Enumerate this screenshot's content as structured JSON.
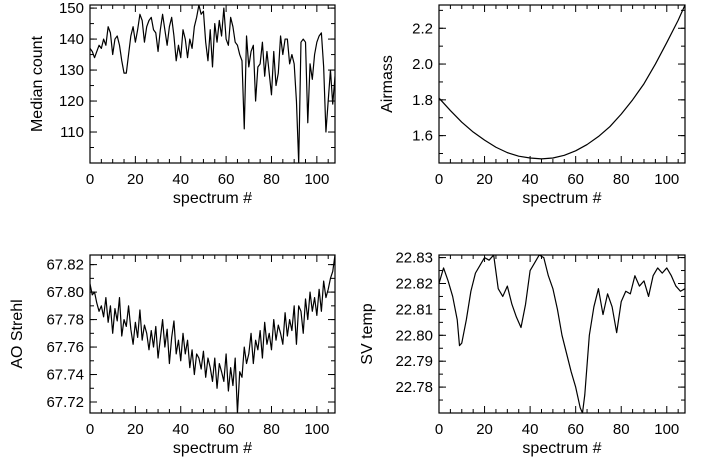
{
  "chart_data": [
    {
      "type": "line",
      "xlabel": "spectrum #",
      "ylabel": "Median count",
      "xlim": [
        0,
        108
      ],
      "ylim": [
        100,
        151
      ],
      "xticks": [
        0,
        20,
        40,
        60,
        80,
        100
      ],
      "yticks": [
        110,
        120,
        130,
        140,
        150
      ],
      "ytick_labels": [
        "110",
        "120",
        "130",
        "140",
        "150"
      ],
      "x": [
        0,
        1,
        2,
        3,
        4,
        5,
        6,
        7,
        8,
        9,
        10,
        11,
        12,
        13,
        14,
        15,
        16,
        17,
        18,
        19,
        20,
        21,
        22,
        23,
        24,
        25,
        26,
        27,
        28,
        29,
        30,
        31,
        32,
        33,
        34,
        35,
        36,
        37,
        38,
        39,
        40,
        41,
        42,
        43,
        44,
        45,
        46,
        47,
        48,
        49,
        50,
        51,
        52,
        53,
        54,
        55,
        56,
        57,
        58,
        59,
        60,
        61,
        62,
        63,
        64,
        65,
        66,
        67,
        68,
        69,
        70,
        71,
        72,
        73,
        74,
        75,
        76,
        77,
        78,
        79,
        80,
        81,
        82,
        83,
        84,
        85,
        86,
        87,
        88,
        89,
        90,
        91,
        92,
        93,
        94,
        95,
        96,
        97,
        98,
        99,
        100,
        101,
        102,
        103,
        104,
        105,
        106,
        107,
        108
      ],
      "values": [
        137,
        136,
        134,
        136,
        138,
        137,
        140,
        138,
        144,
        142,
        135,
        140,
        141,
        138,
        133,
        129,
        129,
        135,
        141,
        144,
        139,
        143,
        148,
        146,
        139,
        144,
        146,
        147,
        143,
        142,
        136,
        143,
        148,
        143,
        138,
        144,
        147,
        141,
        133,
        138,
        134,
        143,
        140,
        134,
        140,
        137,
        144,
        147,
        151,
        148,
        149,
        139,
        133,
        143,
        131,
        145,
        139,
        146,
        141,
        150,
        140,
        138,
        147,
        144,
        139,
        138,
        135,
        133,
        111,
        141,
        131,
        136,
        138,
        120,
        131,
        132,
        139,
        128,
        136,
        129,
        122,
        136,
        125,
        129,
        141,
        135,
        140,
        140,
        132,
        135,
        132,
        120,
        100,
        139,
        140,
        139,
        113,
        132,
        127,
        135,
        139,
        141,
        142,
        131,
        110,
        120,
        130,
        119,
        128
      ]
    },
    {
      "type": "line",
      "xlabel": "spectrum #",
      "ylabel": "Airmass",
      "xlim": [
        0,
        108
      ],
      "ylim": [
        1.447,
        2.33
      ],
      "xticks": [
        0,
        20,
        40,
        60,
        80,
        100
      ],
      "yticks": [
        1.6,
        1.8,
        2.0,
        2.2
      ],
      "ytick_labels": [
        "1.6",
        "1.8",
        "2.0",
        "2.2"
      ],
      "x": [
        0,
        5,
        10,
        15,
        20,
        25,
        30,
        35,
        40,
        45,
        50,
        55,
        60,
        65,
        70,
        75,
        80,
        85,
        90,
        95,
        100,
        105,
        108
      ],
      "values": [
        1.81,
        1.74,
        1.675,
        1.62,
        1.575,
        1.535,
        1.505,
        1.485,
        1.475,
        1.47,
        1.475,
        1.49,
        1.515,
        1.55,
        1.595,
        1.65,
        1.72,
        1.8,
        1.89,
        2.0,
        2.12,
        2.245,
        2.33
      ]
    },
    {
      "type": "line",
      "xlabel": "spectrum #",
      "ylabel": "AO Strehl",
      "xlim": [
        0,
        108
      ],
      "ylim": [
        67.712,
        67.827
      ],
      "xticks": [
        0,
        20,
        40,
        60,
        80,
        100
      ],
      "yticks": [
        67.72,
        67.74,
        67.76,
        67.78,
        67.8,
        67.82
      ],
      "ytick_labels": [
        "67.72",
        "67.74",
        "67.76",
        "67.78",
        "67.80",
        "67.82"
      ],
      "x": [
        0,
        1,
        2,
        3,
        4,
        5,
        6,
        7,
        8,
        9,
        10,
        11,
        12,
        13,
        14,
        15,
        16,
        17,
        18,
        19,
        20,
        21,
        22,
        23,
        24,
        25,
        26,
        27,
        28,
        29,
        30,
        31,
        32,
        33,
        34,
        35,
        36,
        37,
        38,
        39,
        40,
        41,
        42,
        43,
        44,
        45,
        46,
        47,
        48,
        49,
        50,
        51,
        52,
        53,
        54,
        55,
        56,
        57,
        58,
        59,
        60,
        61,
        62,
        63,
        64,
        65,
        66,
        67,
        68,
        69,
        70,
        71,
        72,
        73,
        74,
        75,
        76,
        77,
        78,
        79,
        80,
        81,
        82,
        83,
        84,
        85,
        86,
        87,
        88,
        89,
        90,
        91,
        92,
        93,
        94,
        95,
        96,
        97,
        98,
        99,
        100,
        101,
        102,
        103,
        104,
        105,
        106,
        107,
        108
      ],
      "values": [
        67.806,
        67.798,
        67.8,
        67.792,
        67.786,
        67.79,
        67.782,
        67.796,
        67.778,
        67.79,
        67.77,
        67.788,
        67.779,
        67.796,
        67.768,
        67.78,
        67.775,
        67.79,
        67.773,
        67.762,
        67.778,
        67.767,
        67.787,
        67.765,
        67.776,
        67.77,
        67.758,
        67.772,
        67.76,
        67.775,
        67.752,
        67.766,
        67.78,
        67.76,
        67.773,
        67.748,
        67.767,
        67.779,
        67.755,
        67.765,
        67.75,
        67.77,
        67.755,
        67.765,
        67.745,
        67.758,
        67.74,
        67.755,
        67.752,
        67.744,
        67.757,
        67.738,
        67.752,
        67.745,
        67.735,
        67.752,
        67.73,
        67.748,
        67.742,
        67.735,
        67.755,
        67.728,
        67.745,
        67.732,
        67.752,
        67.712,
        67.742,
        67.738,
        67.76,
        67.748,
        67.755,
        67.77,
        67.748,
        67.765,
        67.758,
        67.772,
        67.752,
        67.778,
        67.762,
        67.77,
        67.758,
        67.78,
        67.765,
        67.776,
        67.77,
        67.762,
        67.785,
        67.768,
        67.78,
        67.772,
        67.79,
        67.762,
        67.79,
        67.786,
        67.77,
        67.795,
        67.78,
        67.8,
        67.786,
        67.796,
        67.783,
        67.802,
        67.786,
        67.808,
        67.796,
        67.802,
        67.81,
        67.815,
        67.827
      ]
    },
    {
      "type": "line",
      "xlabel": "spectrum #",
      "ylabel": "SV temp",
      "xlim": [
        0,
        108
      ],
      "ylim": [
        22.77,
        22.831
      ],
      "xticks": [
        0,
        20,
        40,
        60,
        80,
        100
      ],
      "yticks": [
        22.78,
        22.79,
        22.8,
        22.81,
        22.82,
        22.83
      ],
      "ytick_labels": [
        "22.78",
        "22.79",
        "22.80",
        "22.81",
        "22.82",
        "22.83"
      ],
      "x": [
        0,
        2,
        4,
        6,
        8,
        9,
        10,
        12,
        14,
        16,
        18,
        20,
        22,
        24,
        26,
        28,
        30,
        32,
        34,
        36,
        38,
        40,
        42,
        44,
        46,
        48,
        50,
        52,
        54,
        56,
        58,
        60,
        62,
        63,
        64,
        66,
        68,
        70,
        72,
        74,
        76,
        78,
        80,
        82,
        84,
        86,
        88,
        90,
        92,
        94,
        96,
        98,
        100,
        102,
        104,
        106,
        108
      ],
      "values": [
        22.82,
        22.826,
        22.821,
        22.815,
        22.806,
        22.796,
        22.797,
        22.806,
        22.817,
        22.824,
        22.827,
        22.83,
        22.829,
        22.831,
        22.818,
        22.815,
        22.819,
        22.812,
        22.807,
        22.803,
        22.812,
        22.825,
        22.828,
        22.831,
        22.83,
        22.823,
        22.818,
        22.81,
        22.8,
        22.793,
        22.786,
        22.78,
        22.772,
        22.77,
        22.777,
        22.8,
        22.811,
        22.818,
        22.808,
        22.816,
        22.811,
        22.801,
        22.813,
        22.817,
        22.816,
        22.823,
        22.819,
        22.821,
        22.815,
        22.823,
        22.826,
        22.824,
        22.826,
        22.823,
        22.819,
        22.817,
        22.818
      ]
    }
  ]
}
